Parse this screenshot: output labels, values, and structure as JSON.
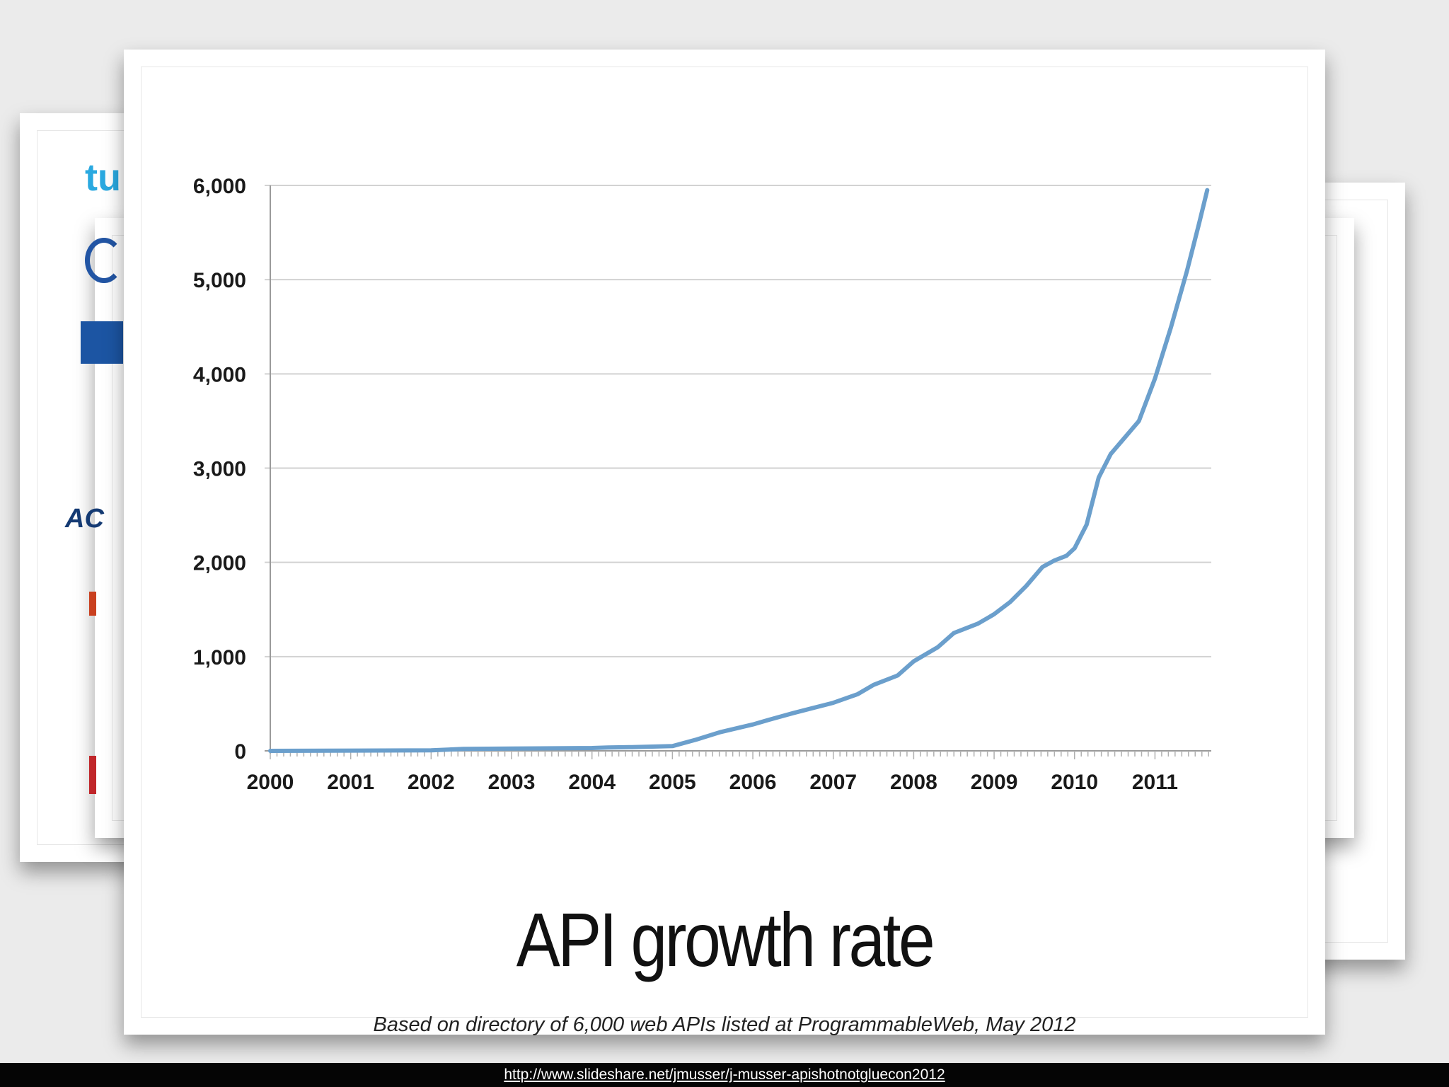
{
  "slide": {
    "title": "API growth rate",
    "source_note": "Based on directory of 6,000 web APIs listed at ProgrammableWeb, May 2012"
  },
  "footer": {
    "url": "http://www.slideshare.net/jmusser/j-musser-apishotnotgluecon2012"
  },
  "background_slides": {
    "left_peek_texts": [
      "tu",
      "AC"
    ]
  },
  "colors": {
    "line": "#6b9fcc",
    "grid": "#d2d2d2",
    "axis": "#9a9a9a",
    "footer_bg": "#050505",
    "peek_blue": "#2aa9e0",
    "peek_navy": "#1c55a3",
    "peek_red": "#c9401f"
  },
  "chart_data": {
    "type": "line",
    "title": "",
    "xlabel": "",
    "ylabel": "",
    "x_ticks": [
      "2000",
      "2001",
      "2002",
      "2003",
      "2004",
      "2005",
      "2006",
      "2007",
      "2008",
      "2009",
      "2010",
      "2011"
    ],
    "y_ticks": [
      "0",
      "1,000",
      "2,000",
      "3,000",
      "4,000",
      "5,000",
      "6,000"
    ],
    "xlim": [
      2000,
      2011.7
    ],
    "ylim": [
      0,
      6000
    ],
    "grid": true,
    "legend": "none",
    "series": [
      {
        "x": [
          2000,
          2002.0,
          2002.4,
          2003.0,
          2004.0,
          2004.2,
          2004.5,
          2005.0,
          2005.3,
          2005.6,
          2006.0,
          2006.2,
          2006.5,
          2007.0,
          2007.3,
          2007.5,
          2007.8,
          2008.0,
          2008.3,
          2008.5,
          2008.8,
          2009.0,
          2009.2,
          2009.4,
          2009.6,
          2009.75,
          2009.9,
          2010.0,
          2010.15,
          2010.3,
          2010.45,
          2010.6,
          2010.8,
          2011.0,
          2011.2,
          2011.4,
          2011.55,
          2011.65
        ],
        "y": [
          0,
          5,
          20,
          25,
          30,
          35,
          40,
          50,
          120,
          200,
          280,
          330,
          400,
          510,
          600,
          700,
          800,
          950,
          1100,
          1250,
          1350,
          1450,
          1580,
          1750,
          1950,
          2020,
          2070,
          2150,
          2400,
          2900,
          3150,
          3300,
          3500,
          3950,
          4500,
          5100,
          5600,
          5950
        ]
      }
    ]
  }
}
